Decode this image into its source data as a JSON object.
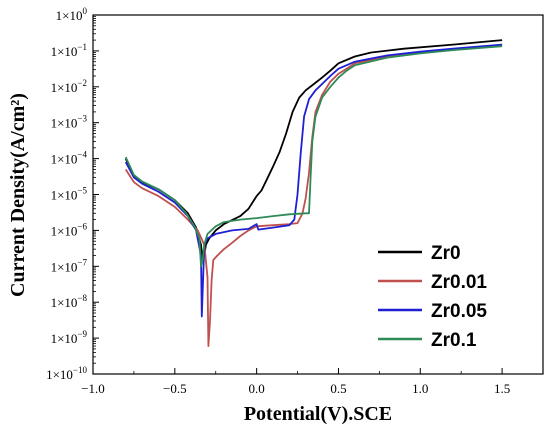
{
  "chart_data": {
    "type": "line",
    "xlabel": "Potential(V).SCE",
    "ylabel": "Current Density(A/cm²)",
    "xlim": [
      -1.0,
      1.75
    ],
    "ylim": [
      1e-10,
      1
    ],
    "y_scale": "log",
    "grid": false,
    "legend_position": "lower-right",
    "x_ticks": [
      {
        "value": -1.0,
        "label": "−1.0"
      },
      {
        "value": -0.5,
        "label": "−0.5"
      },
      {
        "value": 0.0,
        "label": "0.0"
      },
      {
        "value": 0.5,
        "label": "0.5"
      },
      {
        "value": 1.0,
        "label": "1.0"
      },
      {
        "value": 1.5,
        "label": "1.5"
      }
    ],
    "y_ticks": [
      {
        "exp": -10,
        "base": "1×10",
        "sup": "−10"
      },
      {
        "exp": -9,
        "base": "1×10",
        "sup": "−9"
      },
      {
        "exp": -8,
        "base": "1×10",
        "sup": "−8"
      },
      {
        "exp": -7,
        "base": "1×10",
        "sup": "−7"
      },
      {
        "exp": -6,
        "base": "1×10",
        "sup": "−6"
      },
      {
        "exp": -5,
        "base": "1×10",
        "sup": "−5"
      },
      {
        "exp": -4,
        "base": "1×10",
        "sup": "−4"
      },
      {
        "exp": -3,
        "base": "1×10",
        "sup": "−3"
      },
      {
        "exp": -2,
        "base": "1×10",
        "sup": "−2"
      },
      {
        "exp": -1,
        "base": "1×10",
        "sup": "−1"
      },
      {
        "exp": 0,
        "base": "1×10",
        "sup": "0"
      }
    ],
    "series": [
      {
        "name": "Zr0",
        "color": "#000000",
        "points": [
          [
            -0.8,
            0.0001
          ],
          [
            -0.75,
            3.2e-05
          ],
          [
            -0.7,
            2.2e-05
          ],
          [
            -0.6,
            1.4e-05
          ],
          [
            -0.5,
            7e-06
          ],
          [
            -0.42,
            3e-06
          ],
          [
            -0.37,
            1.2e-06
          ],
          [
            -0.34,
            4e-07
          ],
          [
            -0.33,
            1.5e-07
          ],
          [
            -0.32,
            2e-07
          ],
          [
            -0.31,
            4e-07
          ],
          [
            -0.29,
            6e-07
          ],
          [
            -0.25,
            1e-06
          ],
          [
            -0.2,
            1.5e-06
          ],
          [
            -0.1,
            2.5e-06
          ],
          [
            -0.05,
            4e-06
          ],
          [
            0.0,
            9e-06
          ],
          [
            0.03,
            1.3e-05
          ],
          [
            0.06,
            2.5e-05
          ],
          [
            0.1,
            6e-05
          ],
          [
            0.14,
            0.00015
          ],
          [
            0.18,
            0.0005
          ],
          [
            0.22,
            0.002
          ],
          [
            0.26,
            0.005
          ],
          [
            0.3,
            0.008
          ],
          [
            0.35,
            0.012
          ],
          [
            0.4,
            0.018
          ],
          [
            0.45,
            0.028
          ],
          [
            0.5,
            0.045
          ],
          [
            0.6,
            0.07
          ],
          [
            0.7,
            0.09
          ],
          [
            0.9,
            0.115
          ],
          [
            1.2,
            0.15
          ],
          [
            1.5,
            0.2
          ]
        ]
      },
      {
        "name": "Zr0.01",
        "color": "#c0504d",
        "points": [
          [
            -0.8,
            5e-05
          ],
          [
            -0.75,
            2.2e-05
          ],
          [
            -0.7,
            1.5e-05
          ],
          [
            -0.6,
            9e-06
          ],
          [
            -0.5,
            4.5e-06
          ],
          [
            -0.42,
            2e-06
          ],
          [
            -0.36,
            1e-06
          ],
          [
            -0.32,
            4e-07
          ],
          [
            -0.3,
            5e-08
          ],
          [
            -0.295,
            6e-10
          ],
          [
            -0.285,
            3e-09
          ],
          [
            -0.275,
            4e-08
          ],
          [
            -0.265,
            1.5e-07
          ],
          [
            -0.24,
            2e-07
          ],
          [
            -0.2,
            3e-07
          ],
          [
            -0.15,
            4.5e-07
          ],
          [
            -0.1,
            7e-07
          ],
          [
            -0.05,
            1e-06
          ],
          [
            0.0,
            1.3e-06
          ],
          [
            0.1,
            1.4e-06
          ],
          [
            0.2,
            1.5e-06
          ],
          [
            0.25,
            1.6e-06
          ],
          [
            0.28,
            3e-06
          ],
          [
            0.3,
            8e-06
          ],
          [
            0.32,
            4e-05
          ],
          [
            0.34,
            0.0004
          ],
          [
            0.36,
            0.002
          ],
          [
            0.4,
            0.006
          ],
          [
            0.45,
            0.014
          ],
          [
            0.5,
            0.023
          ],
          [
            0.55,
            0.032
          ],
          [
            0.6,
            0.045
          ],
          [
            0.8,
            0.07
          ],
          [
            1.0,
            0.09
          ],
          [
            1.2,
            0.11
          ],
          [
            1.5,
            0.145
          ]
        ]
      },
      {
        "name": "Zr0.05",
        "color": "#1f1fd6",
        "points": [
          [
            -0.8,
            8e-05
          ],
          [
            -0.75,
            3e-05
          ],
          [
            -0.7,
            2e-05
          ],
          [
            -0.6,
            1.2e-05
          ],
          [
            -0.5,
            6e-06
          ],
          [
            -0.42,
            2.5e-06
          ],
          [
            -0.37,
            1e-06
          ],
          [
            -0.34,
            2e-07
          ],
          [
            -0.335,
            4e-09
          ],
          [
            -0.32,
            4e-07
          ],
          [
            -0.3,
            6e-07
          ],
          [
            -0.25,
            8e-07
          ],
          [
            -0.15,
            1e-06
          ],
          [
            -0.05,
            1.1e-06
          ],
          [
            0.0,
            1.5e-06
          ],
          [
            0.01,
            1.05e-06
          ],
          [
            0.1,
            1.2e-06
          ],
          [
            0.2,
            1.4e-06
          ],
          [
            0.23,
            2e-06
          ],
          [
            0.25,
            1e-05
          ],
          [
            0.27,
            0.00015
          ],
          [
            0.29,
            0.0015
          ],
          [
            0.32,
            0.0045
          ],
          [
            0.36,
            0.008
          ],
          [
            0.4,
            0.012
          ],
          [
            0.45,
            0.02
          ],
          [
            0.5,
            0.032
          ],
          [
            0.6,
            0.05
          ],
          [
            0.8,
            0.075
          ],
          [
            1.0,
            0.095
          ],
          [
            1.2,
            0.115
          ],
          [
            1.5,
            0.15
          ]
        ]
      },
      {
        "name": "Zr0.1",
        "color": "#2e8b57",
        "points": [
          [
            -0.8,
            0.00011
          ],
          [
            -0.75,
            3.5e-05
          ],
          [
            -0.7,
            2.3e-05
          ],
          [
            -0.6,
            1.4e-05
          ],
          [
            -0.5,
            7e-06
          ],
          [
            -0.43,
            3e-06
          ],
          [
            -0.38,
            1.3e-06
          ],
          [
            -0.35,
            6e-07
          ],
          [
            -0.34,
            1e-07
          ],
          [
            -0.33,
            1.5e-07
          ],
          [
            -0.32,
            4e-07
          ],
          [
            -0.3,
            8e-07
          ],
          [
            -0.25,
            1.3e-06
          ],
          [
            -0.2,
            1.7e-06
          ],
          [
            -0.1,
            2e-06
          ],
          [
            0.0,
            2.2e-06
          ],
          [
            0.1,
            2.5e-06
          ],
          [
            0.2,
            2.8e-06
          ],
          [
            0.3,
            3e-06
          ],
          [
            0.32,
            3e-06
          ],
          [
            0.33,
            3e-05
          ],
          [
            0.34,
            0.0003
          ],
          [
            0.36,
            0.0015
          ],
          [
            0.4,
            0.005
          ],
          [
            0.45,
            0.01
          ],
          [
            0.5,
            0.018
          ],
          [
            0.55,
            0.028
          ],
          [
            0.6,
            0.04
          ],
          [
            0.8,
            0.065
          ],
          [
            1.0,
            0.085
          ],
          [
            1.2,
            0.105
          ],
          [
            1.5,
            0.135
          ]
        ]
      }
    ]
  }
}
